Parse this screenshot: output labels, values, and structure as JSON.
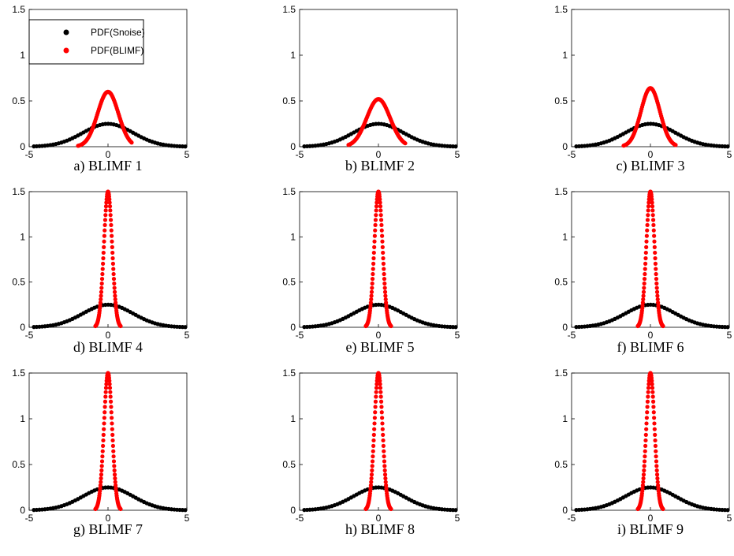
{
  "colors": {
    "snoise": "#000000",
    "blimf": "#ff0000",
    "axis": "#000000",
    "background": "#ffffff"
  },
  "legend": {
    "snoise_label": "PDF(Snoise)",
    "blimf_label": "PDF(BLIMF)"
  },
  "chart_data": [
    {
      "type": "scatter",
      "caption": "a) BLIMF 1",
      "xlim": [
        -5,
        5
      ],
      "ylim": [
        0,
        1.5
      ],
      "x_ticks": [
        "-5",
        "0",
        "5"
      ],
      "y_ticks": [
        "0",
        "0.5",
        "1",
        "1.5"
      ],
      "grid": false,
      "legend_position": "top-left",
      "series": [
        {
          "name": "PDF(Snoise)",
          "color": "#000000",
          "distribution": "gaussian",
          "mean": 0,
          "sigma": 1.6,
          "peak": 0.25,
          "x_range": [
            -4.7,
            4.9
          ]
        },
        {
          "name": "PDF(BLIMF)",
          "color": "#ff0000",
          "distribution": "gaussian",
          "mean": 0,
          "sigma": 0.66,
          "peak": 0.6,
          "x_range": [
            -1.9,
            1.5
          ]
        }
      ]
    },
    {
      "type": "scatter",
      "caption": "b) BLIMF 2",
      "xlim": [
        -5,
        5
      ],
      "ylim": [
        0,
        1.5
      ],
      "x_ticks": [
        "-5",
        "0",
        "5"
      ],
      "y_ticks": [
        "0",
        "0.5",
        "1",
        "1.5"
      ],
      "grid": false,
      "series": [
        {
          "name": "PDF(Snoise)",
          "color": "#000000",
          "distribution": "gaussian",
          "mean": 0,
          "sigma": 1.6,
          "peak": 0.25,
          "x_range": [
            -4.7,
            4.9
          ]
        },
        {
          "name": "PDF(BLIMF)",
          "color": "#ff0000",
          "distribution": "gaussian",
          "mean": 0,
          "sigma": 0.74,
          "peak": 0.52,
          "x_range": [
            -1.9,
            1.7
          ]
        }
      ]
    },
    {
      "type": "scatter",
      "caption": "c) BLIMF 3",
      "xlim": [
        -5,
        5
      ],
      "ylim": [
        0,
        1.5
      ],
      "x_ticks": [
        "-5",
        "0",
        "5"
      ],
      "y_ticks": [
        "0",
        "0.5",
        "1",
        "1.5"
      ],
      "grid": false,
      "series": [
        {
          "name": "PDF(Snoise)",
          "color": "#000000",
          "distribution": "gaussian",
          "mean": 0,
          "sigma": 1.6,
          "peak": 0.25,
          "x_range": [
            -4.7,
            4.9
          ]
        },
        {
          "name": "PDF(BLIMF)",
          "color": "#ff0000",
          "distribution": "gaussian",
          "mean": 0,
          "sigma": 0.6,
          "peak": 0.64,
          "x_range": [
            -1.7,
            1.6
          ]
        }
      ]
    },
    {
      "type": "scatter",
      "caption": "d) BLIMF 4",
      "xlim": [
        -5,
        5
      ],
      "ylim": [
        0,
        1.5
      ],
      "x_ticks": [
        "-5",
        "0",
        "5"
      ],
      "y_ticks": [
        "0",
        "0.5",
        "1",
        "1.5"
      ],
      "grid": false,
      "series": [
        {
          "name": "PDF(Snoise)",
          "color": "#000000",
          "distribution": "gaussian",
          "mean": 0,
          "sigma": 1.6,
          "peak": 0.25,
          "x_range": [
            -4.7,
            4.9
          ]
        },
        {
          "name": "PDF(BLIMF)",
          "color": "#ff0000",
          "distribution": "gaussian",
          "mean": 0,
          "sigma": 0.26,
          "peak": 1.5,
          "x_range": [
            -0.8,
            0.8
          ]
        }
      ]
    },
    {
      "type": "scatter",
      "caption": "e) BLIMF 5",
      "xlim": [
        -5,
        5
      ],
      "ylim": [
        0,
        1.5
      ],
      "x_ticks": [
        "-5",
        "0",
        "5"
      ],
      "y_ticks": [
        "0",
        "0.5",
        "1",
        "1.5"
      ],
      "grid": false,
      "series": [
        {
          "name": "PDF(Snoise)",
          "color": "#000000",
          "distribution": "gaussian",
          "mean": 0,
          "sigma": 1.6,
          "peak": 0.25,
          "x_range": [
            -4.7,
            4.9
          ]
        },
        {
          "name": "PDF(BLIMF)",
          "color": "#ff0000",
          "distribution": "gaussian",
          "mean": 0,
          "sigma": 0.26,
          "peak": 1.5,
          "x_range": [
            -0.8,
            0.8
          ]
        }
      ]
    },
    {
      "type": "scatter",
      "caption": "f) BLIMF 6",
      "xlim": [
        -5,
        5
      ],
      "ylim": [
        0,
        1.5
      ],
      "x_ticks": [
        "-5",
        "0",
        "5"
      ],
      "y_ticks": [
        "0",
        "0.5",
        "1",
        "1.5"
      ],
      "grid": false,
      "series": [
        {
          "name": "PDF(Snoise)",
          "color": "#000000",
          "distribution": "gaussian",
          "mean": 0,
          "sigma": 1.6,
          "peak": 0.25,
          "x_range": [
            -4.7,
            4.9
          ]
        },
        {
          "name": "PDF(BLIMF)",
          "color": "#ff0000",
          "distribution": "gaussian",
          "mean": 0,
          "sigma": 0.26,
          "peak": 1.5,
          "x_range": [
            -0.8,
            0.8
          ]
        }
      ]
    },
    {
      "type": "scatter",
      "caption": "g) BLIMF 7",
      "xlim": [
        -5,
        5
      ],
      "ylim": [
        0,
        1.5
      ],
      "x_ticks": [
        "-5",
        "0",
        "5"
      ],
      "y_ticks": [
        "0",
        "0.5",
        "1",
        "1.5"
      ],
      "grid": false,
      "series": [
        {
          "name": "PDF(Snoise)",
          "color": "#000000",
          "distribution": "gaussian",
          "mean": 0,
          "sigma": 1.6,
          "peak": 0.25,
          "x_range": [
            -4.7,
            4.9
          ]
        },
        {
          "name": "PDF(BLIMF)",
          "color": "#ff0000",
          "distribution": "gaussian",
          "mean": 0,
          "sigma": 0.26,
          "peak": 1.5,
          "x_range": [
            -0.8,
            0.8
          ]
        }
      ]
    },
    {
      "type": "scatter",
      "caption": "h) BLIMF 8",
      "xlim": [
        -5,
        5
      ],
      "ylim": [
        0,
        1.5
      ],
      "x_ticks": [
        "-5",
        "0",
        "5"
      ],
      "y_ticks": [
        "0",
        "0.5",
        "1",
        "1.5"
      ],
      "grid": false,
      "series": [
        {
          "name": "PDF(Snoise)",
          "color": "#000000",
          "distribution": "gaussian",
          "mean": 0,
          "sigma": 1.6,
          "peak": 0.25,
          "x_range": [
            -4.7,
            4.9
          ]
        },
        {
          "name": "PDF(BLIMF)",
          "color": "#ff0000",
          "distribution": "gaussian",
          "mean": 0,
          "sigma": 0.26,
          "peak": 1.5,
          "x_range": [
            -0.8,
            0.8
          ]
        }
      ]
    },
    {
      "type": "scatter",
      "caption": "i) BLIMF 9",
      "xlim": [
        -5,
        5
      ],
      "ylim": [
        0,
        1.5
      ],
      "x_ticks": [
        "-5",
        "0",
        "5"
      ],
      "y_ticks": [
        "0",
        "0.5",
        "1",
        "1.5"
      ],
      "grid": false,
      "series": [
        {
          "name": "PDF(Snoise)",
          "color": "#000000",
          "distribution": "gaussian",
          "mean": 0,
          "sigma": 1.6,
          "peak": 0.25,
          "x_range": [
            -4.7,
            4.9
          ]
        },
        {
          "name": "PDF(BLIMF)",
          "color": "#ff0000",
          "distribution": "gaussian",
          "mean": 0,
          "sigma": 0.26,
          "peak": 1.5,
          "x_range": [
            -0.8,
            0.8
          ]
        }
      ]
    }
  ]
}
